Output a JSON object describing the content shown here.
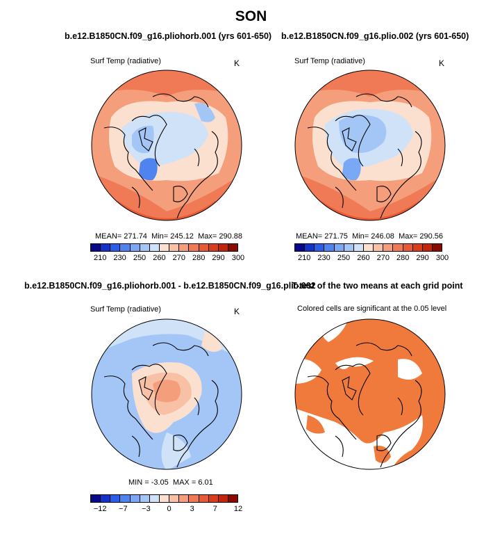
{
  "title": "SON",
  "panel_titles": {
    "top_left": "b.e12.B1850CN.f09_g16.pliohorb.001 (yrs 601-650)",
    "top_right": "b.e12.B1850CN.f09_g16.plio.002 (yrs 601-650)",
    "bottom_left": "b.e12.B1850CN.f09_g16.pliohorb.001 - b.e12.B1850CN.f09_g16.plio.002",
    "bottom_right": "T-test of the two means at each grid point"
  },
  "chart_data": [
    {
      "type": "heatmap",
      "projection": "north polar stereographic",
      "title": "b.e12.B1850CN.f09_g16.pliohorb.001 (yrs 601-650)",
      "variable": "Surf Temp (radiative)",
      "units": "K",
      "stats": {
        "mean_label": "MEAN=",
        "mean": "271.74",
        "min_label": "Min=",
        "min": "245.12",
        "max_label": "Max=",
        "max": "290.88"
      },
      "colorbar": {
        "ticks": [
          "210",
          "230",
          "250",
          "260",
          "270",
          "280",
          "290",
          "300"
        ],
        "colors": [
          "#08088a",
          "#1432c8",
          "#2b5ee6",
          "#4f84f0",
          "#7aa8f5",
          "#a4c6f7",
          "#cfe2f8",
          "#fbe0cf",
          "#f8c1a6",
          "#f49e7c",
          "#ef7a55",
          "#e85a33",
          "#db3d1b",
          "#c4240c",
          "#8b0a00"
        ]
      }
    },
    {
      "type": "heatmap",
      "projection": "north polar stereographic",
      "title": "b.e12.B1850CN.f09_g16.plio.002 (yrs 601-650)",
      "variable": "Surf Temp (radiative)",
      "units": "K",
      "stats": {
        "mean_label": "MEAN=",
        "mean": "271.75",
        "min_label": "Min=",
        "min": "246.08",
        "max_label": "Max=",
        "max": "290.56"
      },
      "colorbar": {
        "ticks": [
          "210",
          "230",
          "250",
          "260",
          "270",
          "280",
          "290",
          "300"
        ],
        "colors": [
          "#08088a",
          "#1432c8",
          "#2b5ee6",
          "#4f84f0",
          "#7aa8f5",
          "#a4c6f7",
          "#cfe2f8",
          "#fbe0cf",
          "#f8c1a6",
          "#f49e7c",
          "#ef7a55",
          "#e85a33",
          "#db3d1b",
          "#c4240c",
          "#8b0a00"
        ]
      }
    },
    {
      "type": "heatmap",
      "projection": "north polar stereographic",
      "title": "b.e12.B1850CN.f09_g16.pliohorb.001 - b.e12.B1850CN.f09_g16.plio.002",
      "variable": "Surf Temp (radiative)",
      "units": "K",
      "stats": {
        "min_label": "MIN =",
        "min": "-3.05",
        "max_label": "MAX =",
        "max": "6.01"
      },
      "colorbar": {
        "ticks": [
          "−12",
          "−7",
          "−3",
          "0",
          "3",
          "7",
          "12"
        ],
        "colors": [
          "#08088a",
          "#1432c8",
          "#2b5ee6",
          "#4f84f0",
          "#7aa8f5",
          "#a4c6f7",
          "#cfe2f8",
          "#fbe0cf",
          "#f8c1a6",
          "#f49e7c",
          "#ef7a55",
          "#e85a33",
          "#db3d1b",
          "#c4240c",
          "#8b0a00"
        ]
      }
    },
    {
      "type": "heatmap",
      "projection": "north polar stereographic",
      "title": "T-test of the two means at each grid point",
      "subtitle": "Colored cells are significant at the 0.05 level",
      "significant_color": "#f07a3c"
    }
  ]
}
